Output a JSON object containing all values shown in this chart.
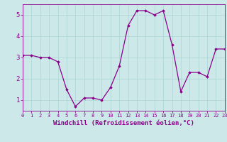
{
  "x": [
    0,
    1,
    2,
    3,
    4,
    5,
    6,
    7,
    8,
    9,
    10,
    11,
    12,
    13,
    14,
    15,
    16,
    17,
    18,
    19,
    20,
    21,
    22,
    23
  ],
  "y": [
    3.1,
    3.1,
    3.0,
    3.0,
    2.8,
    1.5,
    0.7,
    1.1,
    1.1,
    1.0,
    1.6,
    2.6,
    4.5,
    5.2,
    5.2,
    5.0,
    5.2,
    3.6,
    1.4,
    2.3,
    2.3,
    2.1,
    3.4,
    3.4
  ],
  "xlim": [
    0,
    23
  ],
  "ylim": [
    0.5,
    5.5
  ],
  "yticks": [
    1,
    2,
    3,
    4,
    5
  ],
  "xticks": [
    0,
    1,
    2,
    3,
    4,
    5,
    6,
    7,
    8,
    9,
    10,
    11,
    12,
    13,
    14,
    15,
    16,
    17,
    18,
    19,
    20,
    21,
    22,
    23
  ],
  "xlabel": "Windchill (Refroidissement éolien,°C)",
  "line_color": "#8b008b",
  "marker": "D",
  "marker_size": 1.8,
  "bg_color": "#cce8e8",
  "grid_color": "#b0d8d8",
  "tick_fontsize": 5.0,
  "label_fontsize": 6.5
}
